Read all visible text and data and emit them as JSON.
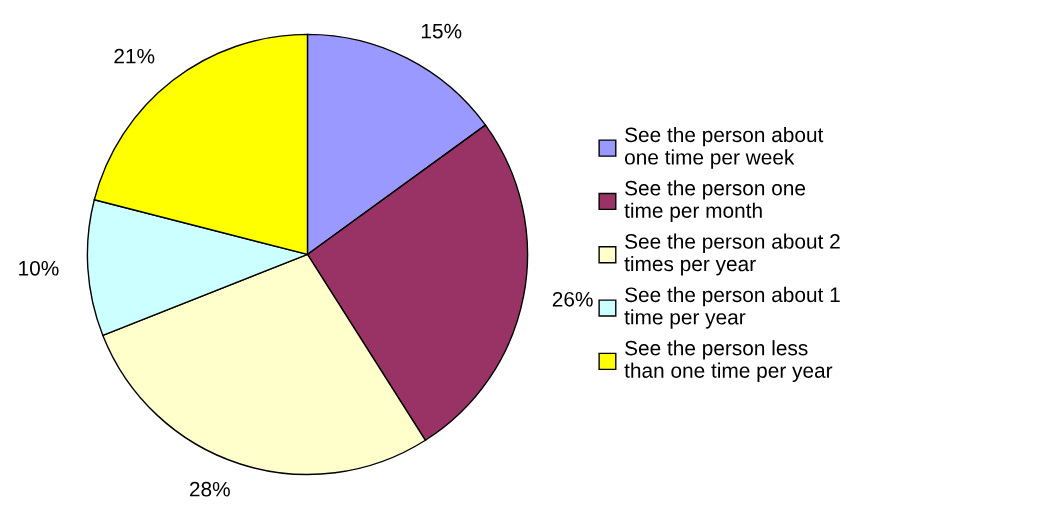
{
  "chart_data": {
    "type": "pie",
    "categories": [
      "See the person about\none time per week",
      "See the person one\ntime per month",
      "See the person about 2\ntimes per year",
      "See the person about 1\ntime per year",
      "See the person less\nthan one time per year"
    ],
    "values": [
      15,
      26,
      28,
      10,
      21
    ],
    "colors": [
      "#9999ff",
      "#993366",
      "#ffffcc",
      "#ccffff",
      "#ffff00"
    ],
    "value_labels": [
      "15%",
      "26%",
      "28%",
      "10%",
      "21%"
    ],
    "legend": "right"
  }
}
